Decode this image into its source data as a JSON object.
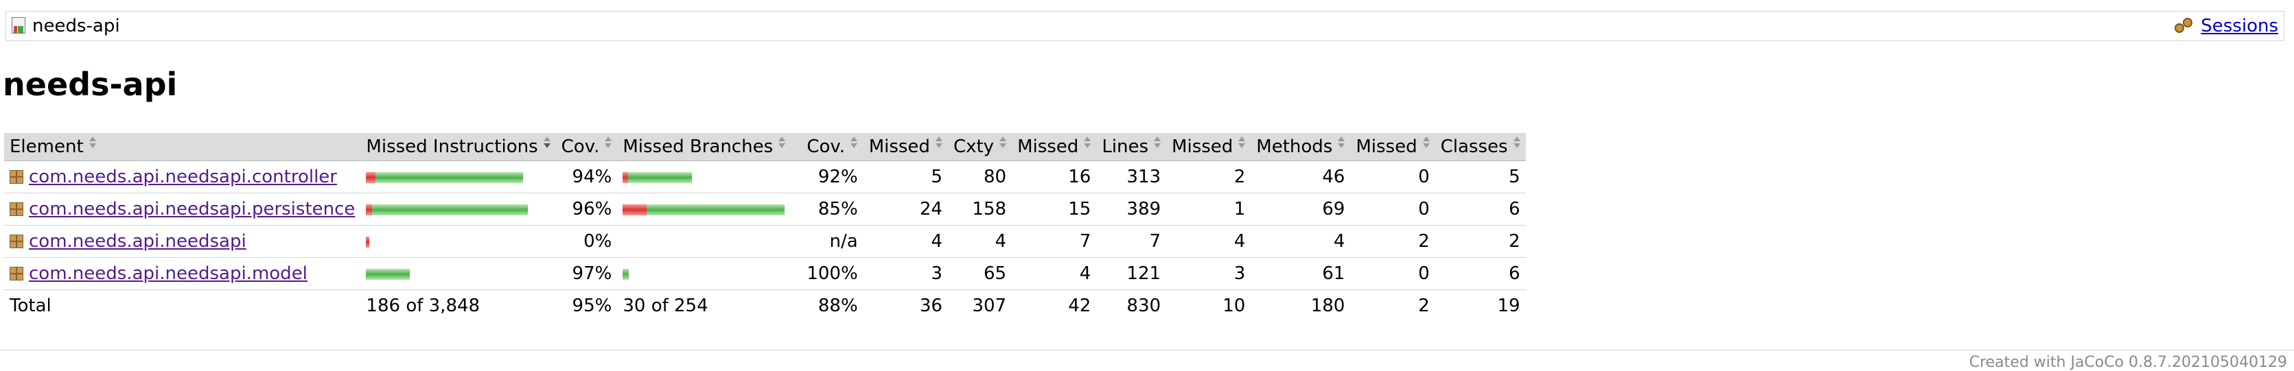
{
  "breadcrumb": {
    "title": "needs-api",
    "sessions_label": "Sessions"
  },
  "page_title": "needs-api",
  "table": {
    "headers": [
      "Element",
      "Missed Instructions",
      "Cov.",
      "Missed Branches",
      "Cov.",
      "Missed",
      "Cxty",
      "Missed",
      "Lines",
      "Missed",
      "Methods",
      "Missed",
      "Classes"
    ],
    "rows": [
      {
        "name": "com.needs.api.needsapi.controller",
        "instr_cov": "94%",
        "branch_cov": "92%",
        "missed_cxty": "5",
        "cxty": "80",
        "missed_lines": "16",
        "lines": "313",
        "missed_methods": "2",
        "methods": "46",
        "missed_classes": "0",
        "classes": "5",
        "instr_bar": {
          "missed": 0.06,
          "covered_scale": 0.97
        },
        "branch_bar": {
          "missed": 0.08,
          "covered_scale": 0.43
        }
      },
      {
        "name": "com.needs.api.needsapi.persistence",
        "instr_cov": "96%",
        "branch_cov": "85%",
        "missed_cxty": "24",
        "cxty": "158",
        "missed_lines": "15",
        "lines": "389",
        "missed_methods": "1",
        "methods": "69",
        "missed_classes": "0",
        "classes": "6",
        "instr_bar": {
          "missed": 0.04,
          "covered_scale": 1.0
        },
        "branch_bar": {
          "missed": 0.15,
          "covered_scale": 1.0
        }
      },
      {
        "name": "com.needs.api.needsapi",
        "instr_cov": "0%",
        "branch_cov": "n/a",
        "missed_cxty": "4",
        "cxty": "4",
        "missed_lines": "7",
        "lines": "7",
        "missed_methods": "4",
        "methods": "4",
        "missed_classes": "2",
        "classes": "2",
        "instr_bar": {
          "missed": 1.0,
          "covered_scale": 0.02
        },
        "branch_bar": null
      },
      {
        "name": "com.needs.api.needsapi.model",
        "instr_cov": "97%",
        "branch_cov": "100%",
        "missed_cxty": "3",
        "cxty": "65",
        "missed_lines": "4",
        "lines": "121",
        "missed_methods": "3",
        "methods": "61",
        "missed_classes": "0",
        "classes": "6",
        "instr_bar": {
          "missed": 0.0,
          "covered_scale": 0.27
        },
        "branch_bar": {
          "missed": 0.0,
          "covered_scale": 0.04
        }
      }
    ],
    "total": {
      "label": "Total",
      "instr": "186 of 3,848",
      "instr_cov": "95%",
      "branch": "30 of 254",
      "branch_cov": "88%",
      "missed_cxty": "36",
      "cxty": "307",
      "missed_lines": "42",
      "lines": "830",
      "missed_methods": "10",
      "methods": "180",
      "missed_classes": "2",
      "classes": "19"
    }
  },
  "footer": "Created with JaCoCo 0.8.7.202105040129"
}
